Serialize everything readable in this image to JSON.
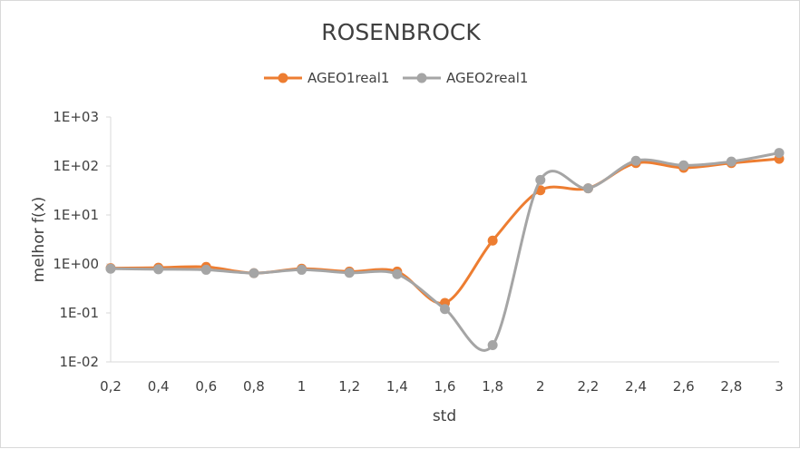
{
  "chart_data": {
    "type": "line",
    "title": "ROSENBROCK",
    "xlabel": "std",
    "ylabel": "melhor f(x)",
    "yscale": "log",
    "ylim": [
      0.01,
      1000
    ],
    "yticks": [
      0.01,
      0.1,
      1,
      10,
      100,
      1000
    ],
    "ytick_labels": [
      "1E-02",
      "1E-01",
      "1E+00",
      "1E+01",
      "1E+02",
      "1E+03"
    ],
    "categories": [
      "0,2",
      "0,4",
      "0,6",
      "0,8",
      "1",
      "1,2",
      "1,4",
      "1,6",
      "1,8",
      "2",
      "2,2",
      "2,4",
      "2,6",
      "2,8",
      "3"
    ],
    "legend_position": "top",
    "grid": false,
    "smooth": true,
    "series": [
      {
        "name": "AGEO1real1",
        "color": "#ED7D31",
        "values": [
          0.82,
          0.84,
          0.87,
          0.65,
          0.8,
          0.7,
          0.7,
          0.16,
          3.0,
          32,
          35,
          115,
          92,
          115,
          140
        ]
      },
      {
        "name": "AGEO2real1",
        "color": "#A5A5A5",
        "values": [
          0.8,
          0.78,
          0.76,
          0.65,
          0.76,
          0.66,
          0.62,
          0.12,
          0.022,
          52,
          35,
          128,
          103,
          123,
          185
        ]
      }
    ]
  }
}
